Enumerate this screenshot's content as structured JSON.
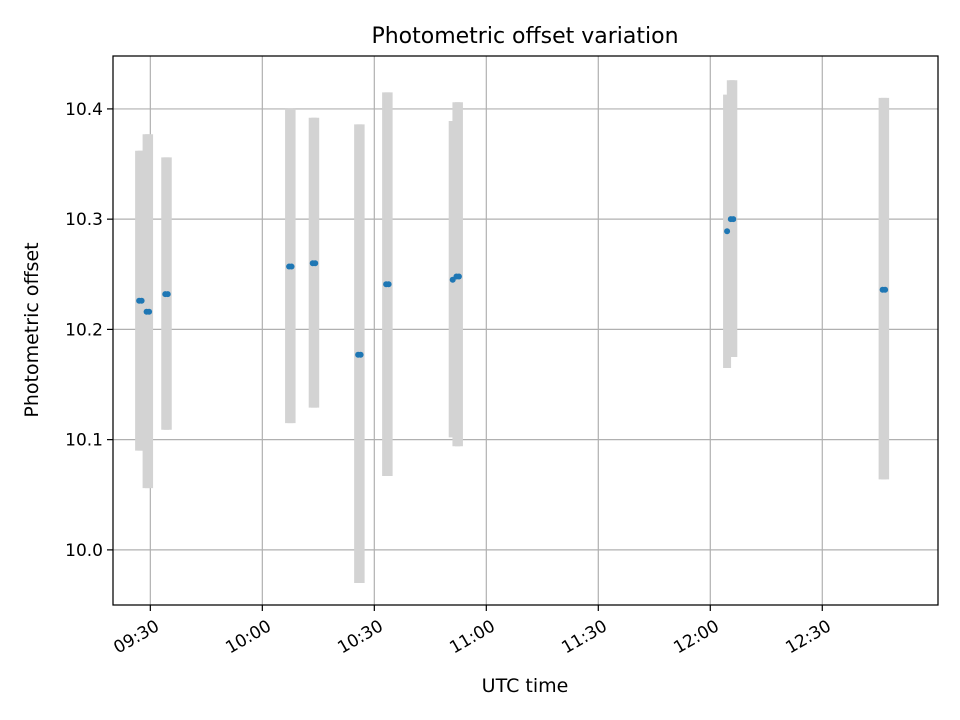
{
  "chart_data": {
    "type": "scatter",
    "title": "Photometric offset variation",
    "xlabel": "UTC time",
    "ylabel": "Photometric offset",
    "x_axis": {
      "kind": "time",
      "range": [
        "09:20",
        "13:01"
      ],
      "ticks": [
        "09:30",
        "10:00",
        "10:30",
        "11:00",
        "11:30",
        "12:00",
        "12:30"
      ]
    },
    "y_axis": {
      "range": [
        9.95,
        10.448
      ],
      "ticks": [
        10.0,
        10.1,
        10.2,
        10.3,
        10.4
      ],
      "tick_labels": [
        "10.0",
        "10.1",
        "10.2",
        "10.3",
        "10.4"
      ]
    },
    "grid": true,
    "colors": {
      "points": "#1f77b4",
      "error_bars": "#d3d3d3",
      "grid": "#b0b0b0"
    },
    "points": [
      {
        "x": "09:27:00",
        "y": 10.226,
        "err_low": 10.09,
        "err_high": 10.362
      },
      {
        "x": "09:27:40",
        "y": 10.226,
        "err_low": 10.09,
        "err_high": 10.362
      },
      {
        "x": "09:29:00",
        "y": 10.216,
        "err_low": 10.056,
        "err_high": 10.377
      },
      {
        "x": "09:29:40",
        "y": 10.216,
        "err_low": 10.056,
        "err_high": 10.377
      },
      {
        "x": "09:34:00",
        "y": 10.232,
        "err_low": 10.109,
        "err_high": 10.356
      },
      {
        "x": "09:34:40",
        "y": 10.232,
        "err_low": 10.109,
        "err_high": 10.356
      },
      {
        "x": "10:07:10",
        "y": 10.257,
        "err_low": 10.115,
        "err_high": 10.4
      },
      {
        "x": "10:07:50",
        "y": 10.257,
        "err_low": 10.115,
        "err_high": 10.4
      },
      {
        "x": "10:13:30",
        "y": 10.26,
        "err_low": 10.129,
        "err_high": 10.392
      },
      {
        "x": "10:14:10",
        "y": 10.26,
        "err_low": 10.129,
        "err_high": 10.392
      },
      {
        "x": "10:25:40",
        "y": 10.177,
        "err_low": 9.97,
        "err_high": 10.386
      },
      {
        "x": "10:26:20",
        "y": 10.177,
        "err_low": 9.97,
        "err_high": 10.386
      },
      {
        "x": "10:33:10",
        "y": 10.241,
        "err_low": 10.067,
        "err_high": 10.415
      },
      {
        "x": "10:33:50",
        "y": 10.241,
        "err_low": 10.067,
        "err_high": 10.415
      },
      {
        "x": "10:51:00",
        "y": 10.245,
        "err_low": 10.102,
        "err_high": 10.389
      },
      {
        "x": "10:52:00",
        "y": 10.248,
        "err_low": 10.094,
        "err_high": 10.406
      },
      {
        "x": "10:52:40",
        "y": 10.248,
        "err_low": 10.094,
        "err_high": 10.406
      },
      {
        "x": "12:04:30",
        "y": 10.289,
        "err_low": 10.165,
        "err_high": 10.413
      },
      {
        "x": "12:05:30",
        "y": 10.3,
        "err_low": 10.175,
        "err_high": 10.426
      },
      {
        "x": "12:06:10",
        "y": 10.3,
        "err_low": 10.175,
        "err_high": 10.426
      },
      {
        "x": "12:46:10",
        "y": 10.236,
        "err_low": 10.064,
        "err_high": 10.41
      },
      {
        "x": "12:46:50",
        "y": 10.236,
        "err_low": 10.064,
        "err_high": 10.41
      }
    ]
  }
}
